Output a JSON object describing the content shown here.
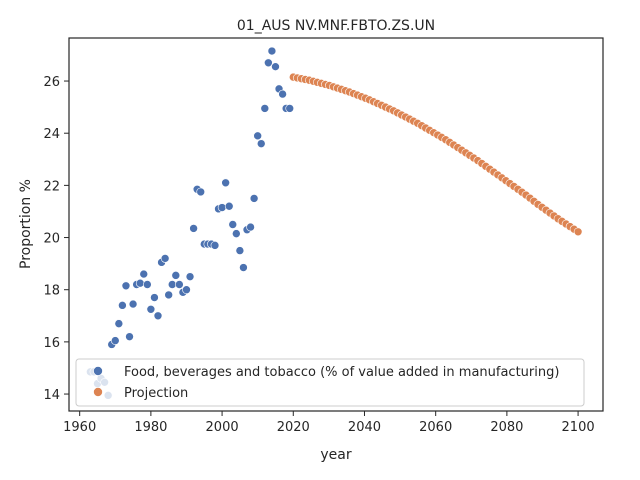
{
  "chart_data": {
    "type": "scatter",
    "title": "01_AUS NV.MNF.FBTO.ZS.UN",
    "xlabel": "year",
    "ylabel": "Proportion %",
    "xlim": [
      1957,
      2107
    ],
    "ylim": [
      13.35,
      27.65
    ],
    "xticks": [
      1960,
      1980,
      2000,
      2020,
      2040,
      2060,
      2080,
      2100
    ],
    "yticks": [
      14,
      16,
      18,
      20,
      22,
      24,
      26
    ],
    "grid": false,
    "legend_position": "lower-left",
    "series": [
      {
        "name": "Food, beverages and tobacco (% of value added in manufacturing)",
        "color": "#4c72b0",
        "x": [
          1963,
          1964,
          1965,
          1966,
          1967,
          1968,
          1969,
          1970,
          1971,
          1972,
          1973,
          1974,
          1975,
          1976,
          1977,
          1978,
          1979,
          1980,
          1981,
          1982,
          1983,
          1984,
          1985,
          1986,
          1987,
          1988,
          1989,
          1990,
          1991,
          1992,
          1993,
          1994,
          1995,
          1996,
          1997,
          1998,
          1999,
          2000,
          2001,
          2002,
          2003,
          2004,
          2005,
          2006,
          2007,
          2008,
          2009,
          2010,
          2011,
          2012,
          2013,
          2014,
          2015,
          2016,
          2017,
          2018,
          2019
        ],
        "y": [
          14.85,
          14.85,
          14.4,
          14.6,
          14.45,
          13.95,
          15.9,
          16.05,
          16.7,
          17.4,
          18.15,
          16.2,
          17.45,
          18.2,
          18.25,
          18.6,
          18.2,
          17.25,
          17.7,
          17.0,
          19.05,
          19.2,
          17.8,
          18.2,
          18.55,
          18.2,
          17.9,
          18.0,
          18.5,
          20.35,
          21.85,
          21.75,
          19.75,
          19.75,
          19.75,
          19.7,
          21.1,
          21.15,
          22.1,
          21.2,
          20.5,
          20.15,
          19.5,
          18.85,
          20.3,
          20.4,
          21.5,
          23.9,
          23.6,
          24.95,
          26.7,
          27.15,
          26.55,
          25.7,
          25.5,
          24.95,
          24.95
        ]
      },
      {
        "name": "Projection",
        "color": "#dd8452",
        "x_start": 2020,
        "x_end": 2100,
        "y": [
          26.15,
          26.12,
          26.09,
          26.06,
          26.03,
          25.99,
          25.95,
          25.91,
          25.87,
          25.83,
          25.78,
          25.73,
          25.68,
          25.63,
          25.58,
          25.52,
          25.46,
          25.4,
          25.34,
          25.28,
          25.21,
          25.14,
          25.07,
          25.0,
          24.93,
          24.86,
          24.78,
          24.7,
          24.62,
          24.54,
          24.46,
          24.38,
          24.29,
          24.2,
          24.11,
          24.02,
          23.93,
          23.84,
          23.75,
          23.65,
          23.55,
          23.45,
          23.35,
          23.25,
          23.15,
          23.05,
          22.95,
          22.84,
          22.73,
          22.62,
          22.51,
          22.4,
          22.29,
          22.18,
          22.07,
          21.96,
          21.85,
          21.74,
          21.63,
          21.51,
          21.39,
          21.27,
          21.16,
          21.05,
          20.94,
          20.83,
          20.72,
          20.62,
          20.52,
          20.42,
          20.32,
          20.22
        ]
      }
    ]
  }
}
